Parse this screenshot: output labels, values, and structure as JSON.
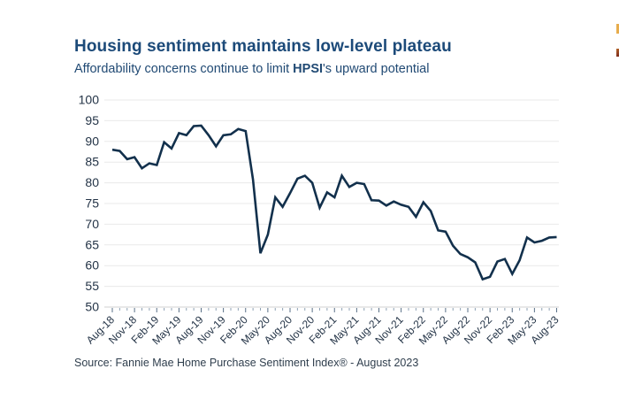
{
  "header": {
    "title": "Housing sentiment maintains low-level plateau",
    "subtitle_prefix": "Affordability concerns continue to limit ",
    "subtitle_bold": "HPSI",
    "subtitle_suffix": "'s upward potential"
  },
  "source": "Source: Fannie Mae Home Purchase Sentiment Index® - August 2023",
  "colors": {
    "title_text": "#1c4a79",
    "line": "#12304c",
    "gridline": "#e9e9e9",
    "baseline": "#d2d2d2",
    "axis_label": "#243447",
    "tick_minor": "#8fa2b4",
    "tick_major": "#5a7188",
    "accent_top": "#e7ad4d",
    "accent_bottom": "#8f4423"
  },
  "chart_data": {
    "type": "line",
    "title": "Housing sentiment maintains low-level plateau",
    "subtitle": "Affordability concerns continue to limit HPSI's upward potential",
    "series_name": "Fannie Mae Home Purchase Sentiment Index (HPSI)",
    "xlabel": "",
    "ylabel": "",
    "ylim": [
      50,
      100
    ],
    "y_ticks": [
      50,
      55,
      60,
      65,
      70,
      75,
      80,
      85,
      90,
      95,
      100
    ],
    "grid": "horizontal",
    "legend": "none",
    "x_tick_label_every_n_months": 3,
    "x": [
      "Aug-18",
      "Sep-18",
      "Oct-18",
      "Nov-18",
      "Dec-18",
      "Jan-19",
      "Feb-19",
      "Mar-19",
      "Apr-19",
      "May-19",
      "Jun-19",
      "Jul-19",
      "Aug-19",
      "Sep-19",
      "Oct-19",
      "Nov-19",
      "Dec-19",
      "Jan-20",
      "Feb-20",
      "Mar-20",
      "Apr-20",
      "May-20",
      "Jun-20",
      "Jul-20",
      "Aug-20",
      "Sep-20",
      "Oct-20",
      "Nov-20",
      "Dec-20",
      "Jan-21",
      "Feb-21",
      "Mar-21",
      "Apr-21",
      "May-21",
      "Jun-21",
      "Jul-21",
      "Aug-21",
      "Sep-21",
      "Oct-21",
      "Nov-21",
      "Dec-21",
      "Jan-22",
      "Feb-22",
      "Mar-22",
      "Apr-22",
      "May-22",
      "Jun-22",
      "Jul-22",
      "Aug-22",
      "Sep-22",
      "Oct-22",
      "Nov-22",
      "Dec-22",
      "Jan-23",
      "Feb-23",
      "Mar-23",
      "Apr-23",
      "May-23",
      "Jun-23",
      "Jul-23",
      "Aug-23"
    ],
    "values": [
      88.0,
      87.7,
      85.7,
      86.2,
      83.5,
      84.7,
      84.3,
      89.8,
      88.3,
      92.0,
      91.5,
      93.7,
      93.8,
      91.5,
      88.8,
      91.5,
      91.7,
      93.0,
      92.5,
      80.8,
      63.0,
      67.5,
      76.5,
      74.2,
      77.5,
      81.0,
      81.7,
      80.0,
      74.0,
      77.7,
      76.5,
      81.7,
      79.0,
      80.0,
      79.7,
      75.8,
      75.7,
      74.5,
      75.5,
      74.7,
      74.2,
      71.8,
      75.3,
      73.2,
      68.5,
      68.2,
      64.8,
      62.8,
      62.0,
      60.8,
      56.7,
      57.3,
      61.0,
      61.6,
      58.0,
      61.3,
      66.8,
      65.6,
      66.0,
      66.8,
      66.9
    ]
  }
}
